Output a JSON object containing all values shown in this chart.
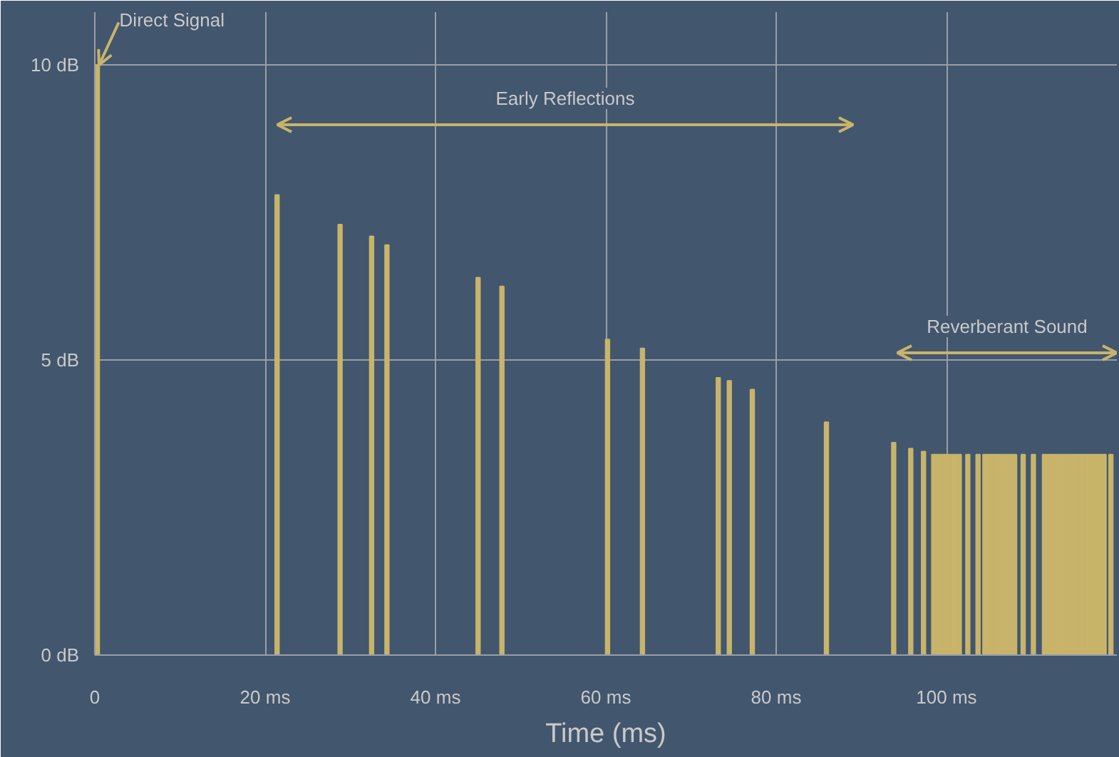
{
  "chart_data": {
    "type": "bar",
    "xlabel": "Time (ms)",
    "x": [
      0.3,
      21.4,
      28.8,
      32.5,
      34.3,
      45,
      47.8,
      60.2,
      64.3,
      73.2,
      74.5,
      77.2,
      85.9,
      93.8,
      95.8,
      97.3,
      98.5,
      99,
      99.5,
      100,
      100.5,
      101,
      101.5,
      102.5,
      103.7,
      104.5,
      105,
      105.5,
      106,
      106.5,
      107,
      107.5,
      108,
      109,
      110.2,
      111.5,
      112,
      112.5,
      113,
      113.5,
      114,
      114.5,
      115,
      115.5,
      116,
      116.5,
      117,
      117.5,
      118,
      118.5,
      119.3
    ],
    "values": [
      10,
      7.8,
      7.3,
      7.1,
      6.95,
      6.4,
      6.25,
      5.35,
      5.2,
      4.7,
      4.65,
      4.5,
      3.95,
      3.6,
      3.5,
      3.45,
      3.4,
      3.4,
      3.4,
      3.4,
      3.4,
      3.4,
      3.4,
      3.4,
      3.4,
      3.4,
      3.4,
      3.4,
      3.4,
      3.4,
      3.4,
      3.4,
      3.4,
      3.4,
      3.4,
      3.4,
      3.4,
      3.4,
      3.4,
      3.4,
      3.4,
      3.4,
      3.4,
      3.4,
      3.4,
      3.4,
      3.4,
      3.4,
      3.4,
      3.4,
      3.4
    ],
    "color": "#c8b46a",
    "xlim": [
      0,
      120
    ],
    "ylim": [
      0,
      10.9
    ],
    "xticks": [
      0,
      {
        "value": 20,
        "label": "20 ms"
      },
      {
        "value": 40,
        "label": "40 ms"
      },
      {
        "value": 60,
        "label": "60 ms"
      },
      {
        "value": 80,
        "label": "80 ms"
      },
      {
        "value": 100,
        "label": "100 ms"
      }
    ],
    "yticks": [
      {
        "value": 0,
        "label": "0 dB"
      },
      {
        "value": 5,
        "label": "5 dB"
      },
      {
        "value": 10,
        "label": "10 dB"
      }
    ],
    "grid": true,
    "annotations": [
      {
        "text": "Direct Signal",
        "x": 0.3,
        "y": 10
      },
      "Early Reflections",
      "Reverberant Sound"
    ]
  }
}
